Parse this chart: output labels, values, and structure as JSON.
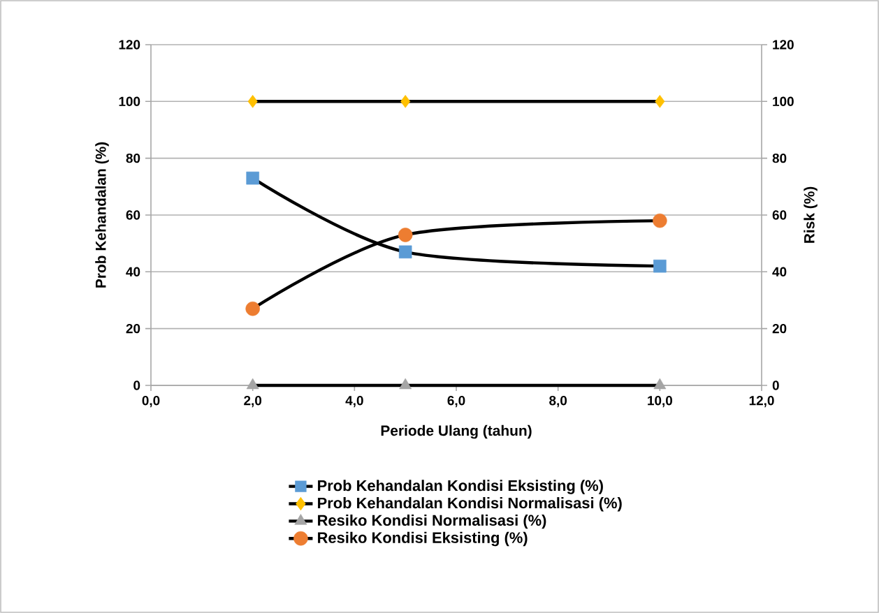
{
  "chart_data": {
    "type": "line",
    "xlabel": "Periode Ulang (tahun)",
    "ylabel": "Prob Kehandalan (%)",
    "y2label": "Risk (%)",
    "x": [
      2,
      5,
      10
    ],
    "series": [
      {
        "name": "Prob Kehandalan Kondisi Eksisting  (%)",
        "color": "#5b9bd5",
        "marker": "square",
        "values": [
          73,
          47,
          42
        ]
      },
      {
        "name": "Prob Kehandalan Kondisi Normalisasi  (%)",
        "color": "#ffc000",
        "marker": "diamond",
        "values": [
          100,
          100,
          100
        ]
      },
      {
        "name": "Resiko Kondisi Normalisasi (%)",
        "color": "#a5a5a5",
        "marker": "triangle",
        "axis": "y2",
        "values": [
          0,
          0,
          0
        ]
      },
      {
        "name": "Resiko Kondisi Eksisting (%)",
        "color": "#ed7d31",
        "marker": "circle",
        "axis": "y2",
        "values": [
          27,
          53,
          58
        ]
      }
    ],
    "xlim": [
      0,
      12
    ],
    "xticks": [
      {
        "value": 0,
        "label": "0,0"
      },
      {
        "value": 2,
        "label": "2,0"
      },
      {
        "value": 4,
        "label": "4,0"
      },
      {
        "value": 6,
        "label": "6,0"
      },
      {
        "value": 8,
        "label": "8,0"
      },
      {
        "value": 10,
        "label": "10,0"
      },
      {
        "value": 12,
        "label": "12,0"
      }
    ],
    "ylim": [
      0,
      120
    ],
    "yticks": [
      0,
      20,
      40,
      60,
      80,
      100,
      120
    ],
    "y2lim": [
      0,
      120
    ],
    "y2ticks": [
      0,
      20,
      40,
      60,
      80,
      100,
      120
    ],
    "grid": "y",
    "legend": "bottom",
    "line_style": "solid"
  }
}
